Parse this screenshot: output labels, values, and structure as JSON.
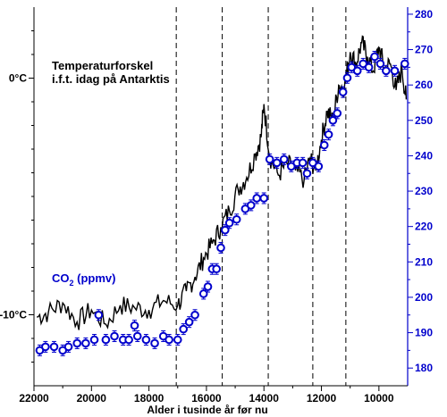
{
  "chart_data": [
    {
      "type": "line",
      "title": "Temperaturforskel",
      "subtitle": "i.f.t. idag på Antarktis",
      "xlabel": "Alder i tusinde år før nu",
      "x_ticks": [
        "22000",
        "20000",
        "18000",
        "16000",
        "14000",
        "12000",
        "10000"
      ],
      "xlim": [
        22000,
        9000
      ],
      "ylim": [
        -13,
        3
      ],
      "y_ticks": [
        {
          "label": "0°C",
          "value": 0
        },
        {
          "label": "-10°C",
          "value": -10
        }
      ],
      "color": "#000000",
      "series": [
        {
          "x": [
            21900,
            21500,
            21000,
            20500,
            20000,
            19500,
            19000,
            18500,
            18000,
            17500,
            17000,
            16700,
            16400,
            16100,
            15800,
            15500,
            15200,
            14900,
            14600,
            14300,
            14100,
            14000,
            13800,
            13500,
            13200,
            12900,
            12600,
            12400,
            12200,
            12000,
            11800,
            11600,
            11400,
            11200,
            11000,
            10800,
            10600,
            10400,
            10200,
            10000,
            9800,
            9600,
            9400,
            9200,
            9050
          ],
          "y": [
            -10.1,
            -9.9,
            -9.5,
            -10.3,
            -9.8,
            -10.4,
            -9.6,
            -9.7,
            -9.8,
            -9.4,
            -9.6,
            -9.0,
            -8.4,
            -7.6,
            -7.0,
            -6.3,
            -5.6,
            -4.7,
            -4.2,
            -3.2,
            -2.5,
            -1.1,
            -3.3,
            -4.1,
            -3.6,
            -3.9,
            -4.3,
            -3.4,
            -3.9,
            -2.6,
            -1.4,
            -1.8,
            -0.3,
            -0.4,
            1.1,
            0.6,
            1.5,
            0.9,
            0.3,
            1.3,
            0.4,
            0.6,
            -0.5,
            0.4,
            -0.9
          ]
        }
      ]
    },
    {
      "type": "scatter",
      "title": "CO",
      "title_sub": "2",
      "title_unit": " (ppmv)",
      "xlim": [
        22000,
        9000
      ],
      "ylim": [
        175,
        282
      ],
      "y_ticks": [
        180,
        190,
        200,
        210,
        220,
        230,
        240,
        250,
        260,
        270,
        280
      ],
      "color": "#0000cc",
      "points": [
        {
          "x": 21800,
          "y": 185
        },
        {
          "x": 21600,
          "y": 186
        },
        {
          "x": 21300,
          "y": 186
        },
        {
          "x": 21000,
          "y": 185
        },
        {
          "x": 20800,
          "y": 186
        },
        {
          "x": 20500,
          "y": 187
        },
        {
          "x": 20200,
          "y": 187
        },
        {
          "x": 19900,
          "y": 188
        },
        {
          "x": 19750,
          "y": 195
        },
        {
          "x": 19500,
          "y": 188
        },
        {
          "x": 19200,
          "y": 189
        },
        {
          "x": 18900,
          "y": 188
        },
        {
          "x": 18700,
          "y": 188
        },
        {
          "x": 18500,
          "y": 192
        },
        {
          "x": 18400,
          "y": 189
        },
        {
          "x": 18100,
          "y": 188
        },
        {
          "x": 17800,
          "y": 187
        },
        {
          "x": 17500,
          "y": 189
        },
        {
          "x": 17300,
          "y": 188
        },
        {
          "x": 17000,
          "y": 188
        },
        {
          "x": 16800,
          "y": 191
        },
        {
          "x": 16600,
          "y": 193
        },
        {
          "x": 16400,
          "y": 195
        },
        {
          "x": 16100,
          "y": 201
        },
        {
          "x": 15950,
          "y": 203
        },
        {
          "x": 15800,
          "y": 208
        },
        {
          "x": 15650,
          "y": 208
        },
        {
          "x": 15500,
          "y": 214
        },
        {
          "x": 15350,
          "y": 219
        },
        {
          "x": 15200,
          "y": 221
        },
        {
          "x": 14950,
          "y": 222
        },
        {
          "x": 14650,
          "y": 225
        },
        {
          "x": 14450,
          "y": 226
        },
        {
          "x": 14250,
          "y": 228
        },
        {
          "x": 14000,
          "y": 228
        },
        {
          "x": 13800,
          "y": 239
        },
        {
          "x": 13550,
          "y": 238
        },
        {
          "x": 13300,
          "y": 239
        },
        {
          "x": 13050,
          "y": 237
        },
        {
          "x": 12850,
          "y": 238
        },
        {
          "x": 12650,
          "y": 238
        },
        {
          "x": 12500,
          "y": 235
        },
        {
          "x": 12300,
          "y": 238
        },
        {
          "x": 12100,
          "y": 237
        },
        {
          "x": 11900,
          "y": 243
        },
        {
          "x": 11750,
          "y": 246
        },
        {
          "x": 11600,
          "y": 250
        },
        {
          "x": 11450,
          "y": 252
        },
        {
          "x": 11250,
          "y": 258
        },
        {
          "x": 11100,
          "y": 262
        },
        {
          "x": 10950,
          "y": 265
        },
        {
          "x": 10750,
          "y": 264
        },
        {
          "x": 10550,
          "y": 266
        },
        {
          "x": 10350,
          "y": 265
        },
        {
          "x": 10150,
          "y": 268
        },
        {
          "x": 9950,
          "y": 266
        },
        {
          "x": 9750,
          "y": 264
        },
        {
          "x": 9450,
          "y": 264
        },
        {
          "x": 9100,
          "y": 266
        }
      ]
    }
  ],
  "dashed_lines_x": [
    17050,
    15450,
    13850,
    12300,
    11150
  ]
}
